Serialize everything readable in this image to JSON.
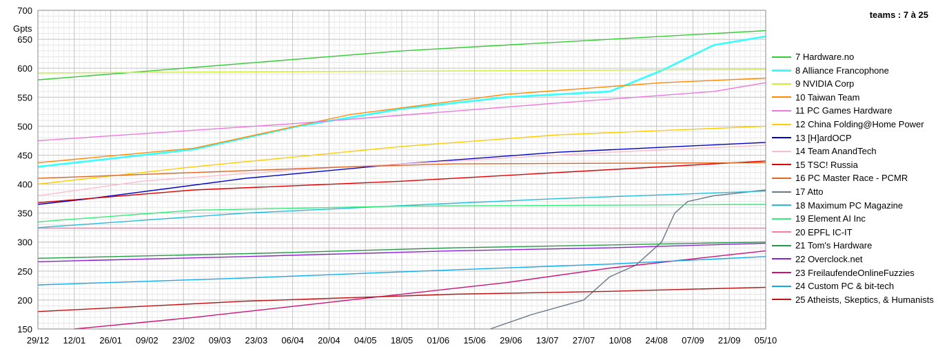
{
  "chart_data": {
    "type": "line",
    "title": "teams : 7 à 25",
    "ylabel": "Gpts",
    "xlabel": "",
    "ylim": [
      150,
      700
    ],
    "yticks": [
      150,
      200,
      250,
      300,
      350,
      400,
      450,
      500,
      550,
      600,
      650,
      700
    ],
    "xticks": [
      "29/12",
      "12/01",
      "26/01",
      "09/02",
      "23/02",
      "09/03",
      "23/03",
      "06/04",
      "20/04",
      "04/05",
      "18/05",
      "01/06",
      "15/06",
      "29/06",
      "13/07",
      "27/07",
      "10/08",
      "24/08",
      "07/09",
      "21/09",
      "05/10"
    ],
    "grid": true,
    "legend_position": "right",
    "series": [
      {
        "name": "7 Hardware.no",
        "color": "#33cc33",
        "x": [
          0,
          140,
          280
        ],
        "y": [
          580,
          630,
          665
        ]
      },
      {
        "name": "8 Alliance Francophone",
        "color": "#33ffff",
        "x": [
          0,
          60,
          100,
          140,
          180,
          220,
          240,
          260,
          280
        ],
        "y": [
          430,
          460,
          500,
          530,
          550,
          560,
          596,
          640,
          655
        ]
      },
      {
        "name": "9 NVIDIA Corp",
        "color": "#ccee33",
        "x": [
          0,
          140,
          280
        ],
        "y": [
          592,
          595,
          598
        ]
      },
      {
        "name": "10 Taiwan Team",
        "color": "#ff8800",
        "x": [
          0,
          60,
          120,
          180,
          240,
          280
        ],
        "y": [
          437,
          462,
          520,
          555,
          575,
          583
        ]
      },
      {
        "name": "11 PC Games Hardware",
        "color": "#ee77dd",
        "x": [
          0,
          100,
          200,
          260,
          280
        ],
        "y": [
          475,
          505,
          540,
          560,
          575
        ]
      },
      {
        "name": "12 China Folding@Home Power",
        "color": "#ffcc00",
        "x": [
          0,
          60,
          140,
          200,
          280
        ],
        "y": [
          400,
          430,
          465,
          485,
          500
        ]
      },
      {
        "name": "13 [H]ardOCP",
        "color": "#0000cc",
        "x": [
          0,
          20,
          80,
          140,
          200,
          280
        ],
        "y": [
          365,
          375,
          410,
          435,
          455,
          472
        ]
      },
      {
        "name": "14 Team AnandTech",
        "color": "#ffbbcc",
        "x": [
          0,
          40,
          100,
          160,
          220,
          280
        ],
        "y": [
          380,
          405,
          425,
          440,
          455,
          467
        ]
      },
      {
        "name": "15 TSC! Russia",
        "color": "#dd0000",
        "x": [
          0,
          60,
          140,
          220,
          280
        ],
        "y": [
          368,
          390,
          405,
          425,
          440
        ]
      },
      {
        "name": "16 PC Master Race - PCMR",
        "color": "#dd6622",
        "x": [
          0,
          60,
          120,
          160,
          280
        ],
        "y": [
          410,
          420,
          430,
          435,
          437
        ]
      },
      {
        "name": "17 Atto",
        "color": "#667788",
        "x": [
          174,
          190,
          210,
          220,
          230,
          240,
          245,
          250,
          260,
          280
        ],
        "y": [
          150,
          175,
          200,
          240,
          260,
          300,
          350,
          370,
          380,
          390
        ]
      },
      {
        "name": "18 Maximum PC Magazine",
        "color": "#22bbdd",
        "x": [
          0,
          80,
          140,
          200,
          280
        ],
        "y": [
          325,
          350,
          363,
          375,
          388
        ]
      },
      {
        "name": "19 Element AI Inc",
        "color": "#33ee77",
        "x": [
          0,
          60,
          140,
          280
        ],
        "y": [
          335,
          355,
          362,
          365
        ]
      },
      {
        "name": "20 EPFL IC-IT",
        "color": "#ff77aa",
        "x": [
          0,
          280
        ],
        "y": [
          324,
          324
        ]
      },
      {
        "name": "21 Tom's Hardware",
        "color": "#229944",
        "x": [
          0,
          80,
          160,
          220,
          280
        ],
        "y": [
          272,
          280,
          290,
          295,
          300
        ]
      },
      {
        "name": "22 Overclock.net",
        "color": "#8822cc",
        "x": [
          0,
          80,
          160,
          220,
          280
        ],
        "y": [
          266,
          275,
          285,
          290,
          298
        ]
      },
      {
        "name": "23 FreilaufendeOnlineFuzzies",
        "color": "#cc1177",
        "x": [
          14,
          60,
          120,
          180,
          220,
          280
        ],
        "y": [
          150,
          170,
          200,
          230,
          255,
          285
        ]
      },
      {
        "name": "24 Custom PC & bit-tech",
        "color": "#11aaee",
        "x": [
          0,
          80,
          160,
          220,
          280
        ],
        "y": [
          226,
          238,
          252,
          262,
          275
        ]
      },
      {
        "name": "25 Atheists, Skeptics, & Humanists",
        "color": "#bb1111",
        "x": [
          0,
          80,
          160,
          220,
          280
        ],
        "y": [
          180,
          198,
          210,
          215,
          222
        ]
      }
    ]
  }
}
